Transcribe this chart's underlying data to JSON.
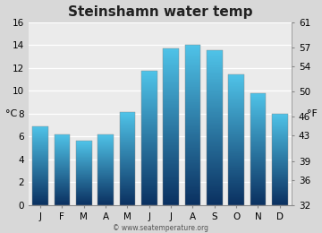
{
  "title": "Steinshamn water temp",
  "months": [
    "J",
    "F",
    "M",
    "A",
    "M",
    "J",
    "J",
    "A",
    "S",
    "O",
    "N",
    "D"
  ],
  "values_c": [
    6.9,
    6.2,
    5.6,
    6.2,
    8.1,
    11.7,
    13.7,
    14.0,
    13.5,
    11.4,
    9.8,
    8.0
  ],
  "ylim_c": [
    0,
    16
  ],
  "yticks_c": [
    0,
    2,
    4,
    6,
    8,
    10,
    12,
    14,
    16
  ],
  "ylim_f": [
    32,
    61
  ],
  "yticks_f": [
    32,
    36,
    39,
    43,
    46,
    50,
    54,
    57,
    61
  ],
  "ylabel_left": "°C",
  "ylabel_right": "°F",
  "bar_color_top": "#4fc3e8",
  "bar_color_bottom": "#0a3060",
  "background_color": "#d8d8d8",
  "plot_bg_color": "#ebebeb",
  "watermark": "© www.seatemperature.org",
  "title_fontsize": 11,
  "tick_fontsize": 7.5,
  "label_fontsize": 8
}
